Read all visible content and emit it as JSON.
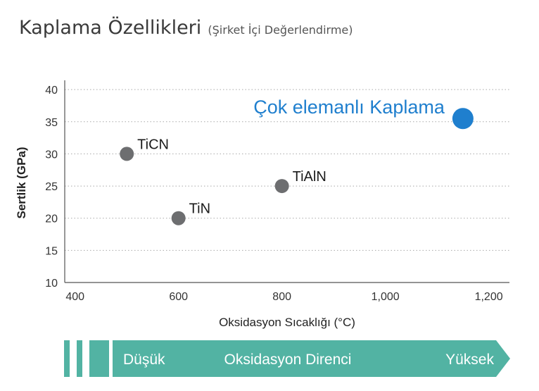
{
  "title": {
    "main": "Kaplama Özellikleri",
    "sub": "(Şirket  İçi Değerlendirme)"
  },
  "chart_data": {
    "type": "scatter",
    "xlabel": "Oksidasyon Sıcaklığı  (°C)",
    "ylabel": "Sertlik (GPa)",
    "xlim": [
      380,
      1240
    ],
    "ylim": [
      10,
      41
    ],
    "xticks": [
      400,
      600,
      800,
      1000,
      1200
    ],
    "xtick_labels": [
      "400",
      "600",
      "800",
      "1,000",
      "1,200"
    ],
    "yticks": [
      10,
      15,
      20,
      25,
      30,
      35,
      40
    ],
    "ytick_labels": [
      "10",
      "15",
      "20",
      "25",
      "30",
      "35",
      "40"
    ],
    "grid": "horizontal dotted",
    "points": [
      {
        "label": "TiCN",
        "x": 500,
        "y": 30,
        "color": "#6d6e70",
        "size": "small"
      },
      {
        "label": "TiN",
        "x": 600,
        "y": 20,
        "color": "#6d6e70",
        "size": "small"
      },
      {
        "label": "TiAlN",
        "x": 800,
        "y": 25,
        "color": "#6d6e70",
        "size": "small"
      },
      {
        "label": "Çok elemanlı Kaplama",
        "x": 1150,
        "y": 35.5,
        "color": "#1f7fce",
        "size": "large"
      }
    ]
  },
  "banner": {
    "low_label": "Düşük",
    "middle_label": "Oksidasyon Direnci",
    "high_label": "Yüksek",
    "color": "#52b3a3"
  }
}
